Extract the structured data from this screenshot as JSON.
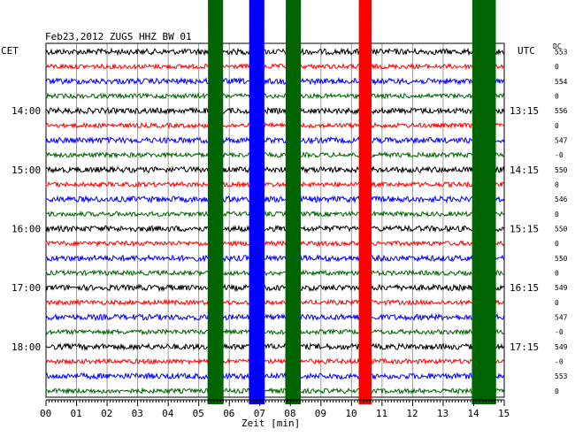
{
  "header": {
    "title": "Feb23,2012  ZUGS HHZ BW 01",
    "left_tz": "CET",
    "right_tz": "UTC",
    "dc_label": "DC"
  },
  "chart_data": {
    "type": "helicorder",
    "title": "Feb23,2012  ZUGS HHZ BW 01",
    "xlabel": "Zeit [min]",
    "x_ticks": [
      "00",
      "01",
      "02",
      "03",
      "04",
      "05",
      "06",
      "07",
      "08",
      "09",
      "10",
      "11",
      "12",
      "13",
      "14",
      "15"
    ],
    "xlim": [
      0,
      15
    ],
    "grid": true,
    "trace_count": 24,
    "trace_colors": [
      "#000000",
      "#ff0000",
      "#0000ff",
      "#006400"
    ],
    "left_labels": [
      {
        "row": 4,
        "text": "14:00"
      },
      {
        "row": 8,
        "text": "15:00"
      },
      {
        "row": 12,
        "text": "16:00"
      },
      {
        "row": 16,
        "text": "17:00"
      },
      {
        "row": 20,
        "text": "18:00"
      }
    ],
    "right_labels": [
      {
        "row": 4,
        "text": "13:15"
      },
      {
        "row": 8,
        "text": "14:15"
      },
      {
        "row": 12,
        "text": "15:15"
      },
      {
        "row": 16,
        "text": "16:15"
      },
      {
        "row": 20,
        "text": "17:15"
      }
    ],
    "dc_values": [
      "553",
      "0",
      "554",
      "0",
      "556",
      "0",
      "547",
      "-0",
      "550",
      "0",
      "546",
      "0",
      "550",
      "0",
      "550",
      "0",
      "549",
      "0",
      "547",
      "-0",
      "549",
      "-0",
      "553",
      "0"
    ],
    "events": [
      {
        "color": "#006400",
        "minute": 5.55,
        "span": 3.0
      },
      {
        "color": "#0000ff",
        "minute": 6.9,
        "span": 3.0
      },
      {
        "color": "#006400",
        "minute": 8.1,
        "span": 3.0
      },
      {
        "color": "#ff0000",
        "minute": 10.45,
        "span": 2.5
      },
      {
        "color": "#006400",
        "minute": 14.2,
        "span": 3.0
      },
      {
        "color": "#006400",
        "minute": 14.55,
        "span": 2.0
      }
    ]
  }
}
